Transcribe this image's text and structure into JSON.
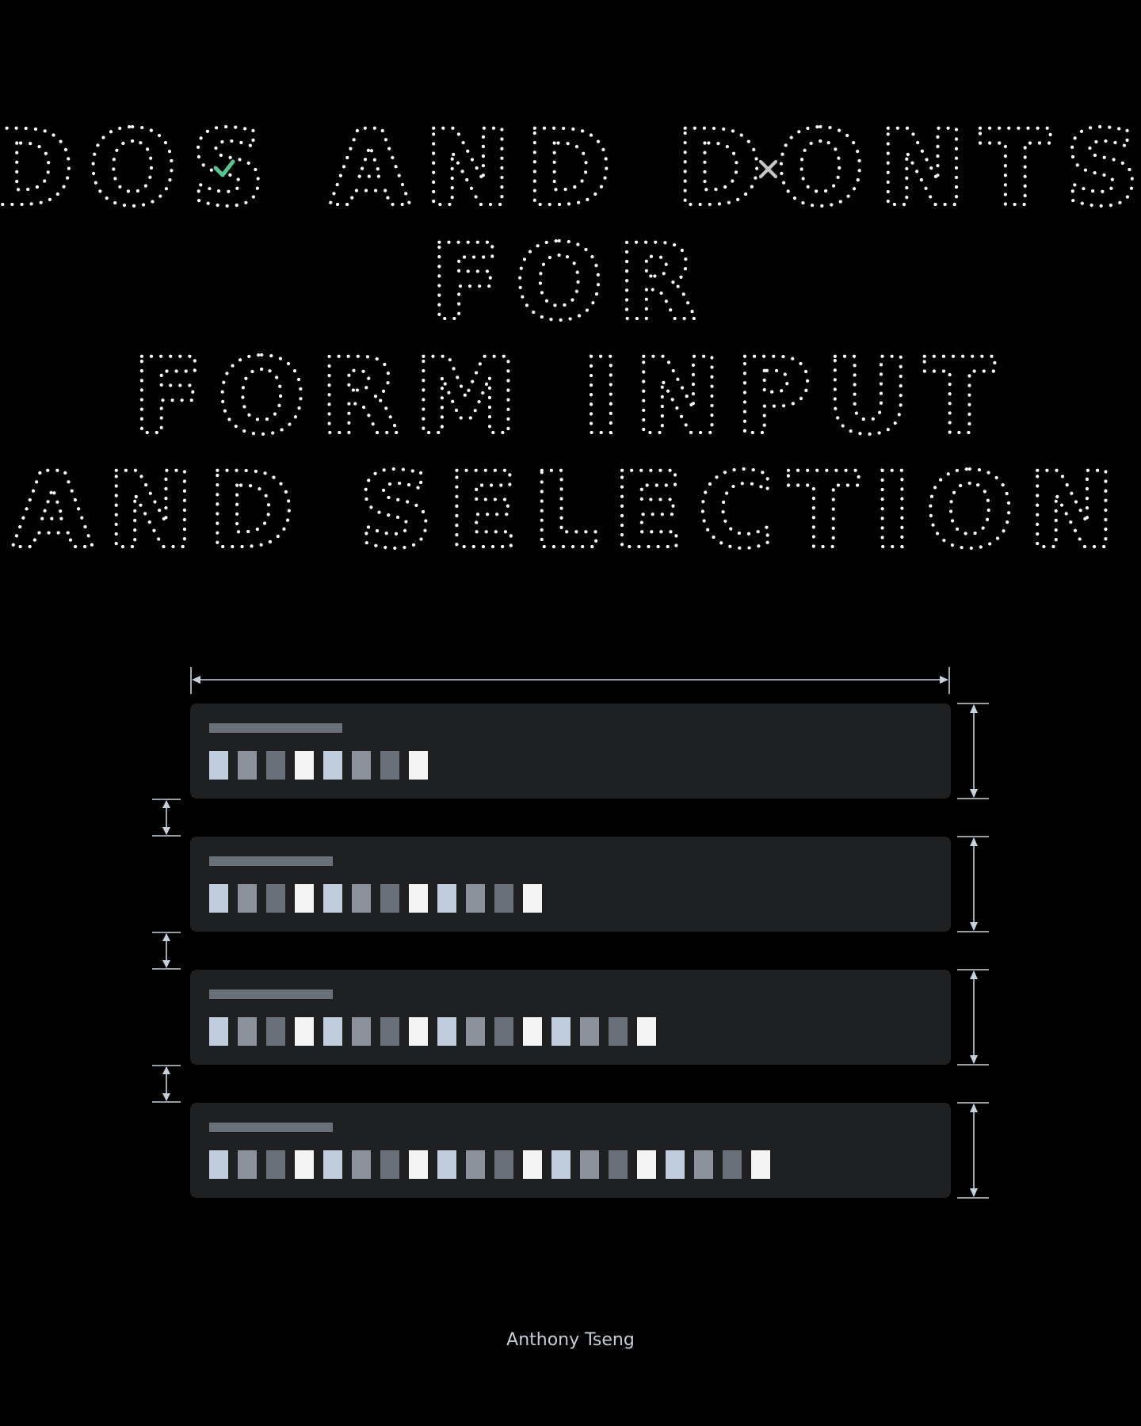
{
  "title": {
    "lines": [
      "DOS AND DONTS",
      "FOR",
      "FORM INPUT",
      "AND SELECTION"
    ],
    "do_icon": "check-icon",
    "dont_icon": "x-icon",
    "colors": {
      "letters": "#ffffff",
      "check": "#56c58f",
      "x": "#c6c6c6"
    }
  },
  "illustration": {
    "dimension_color": "#c7d1dc",
    "card_color": "#1f2022",
    "label_bar_color": "#6b7179",
    "block_palette": [
      "#c0cedc",
      "#8a9198",
      "#6b7179",
      "#f4f4f4"
    ],
    "cards": [
      {
        "block_count": 8
      },
      {
        "block_count": 12
      },
      {
        "block_count": 16
      },
      {
        "block_count": 20
      }
    ]
  },
  "author": "Anthony Tseng"
}
